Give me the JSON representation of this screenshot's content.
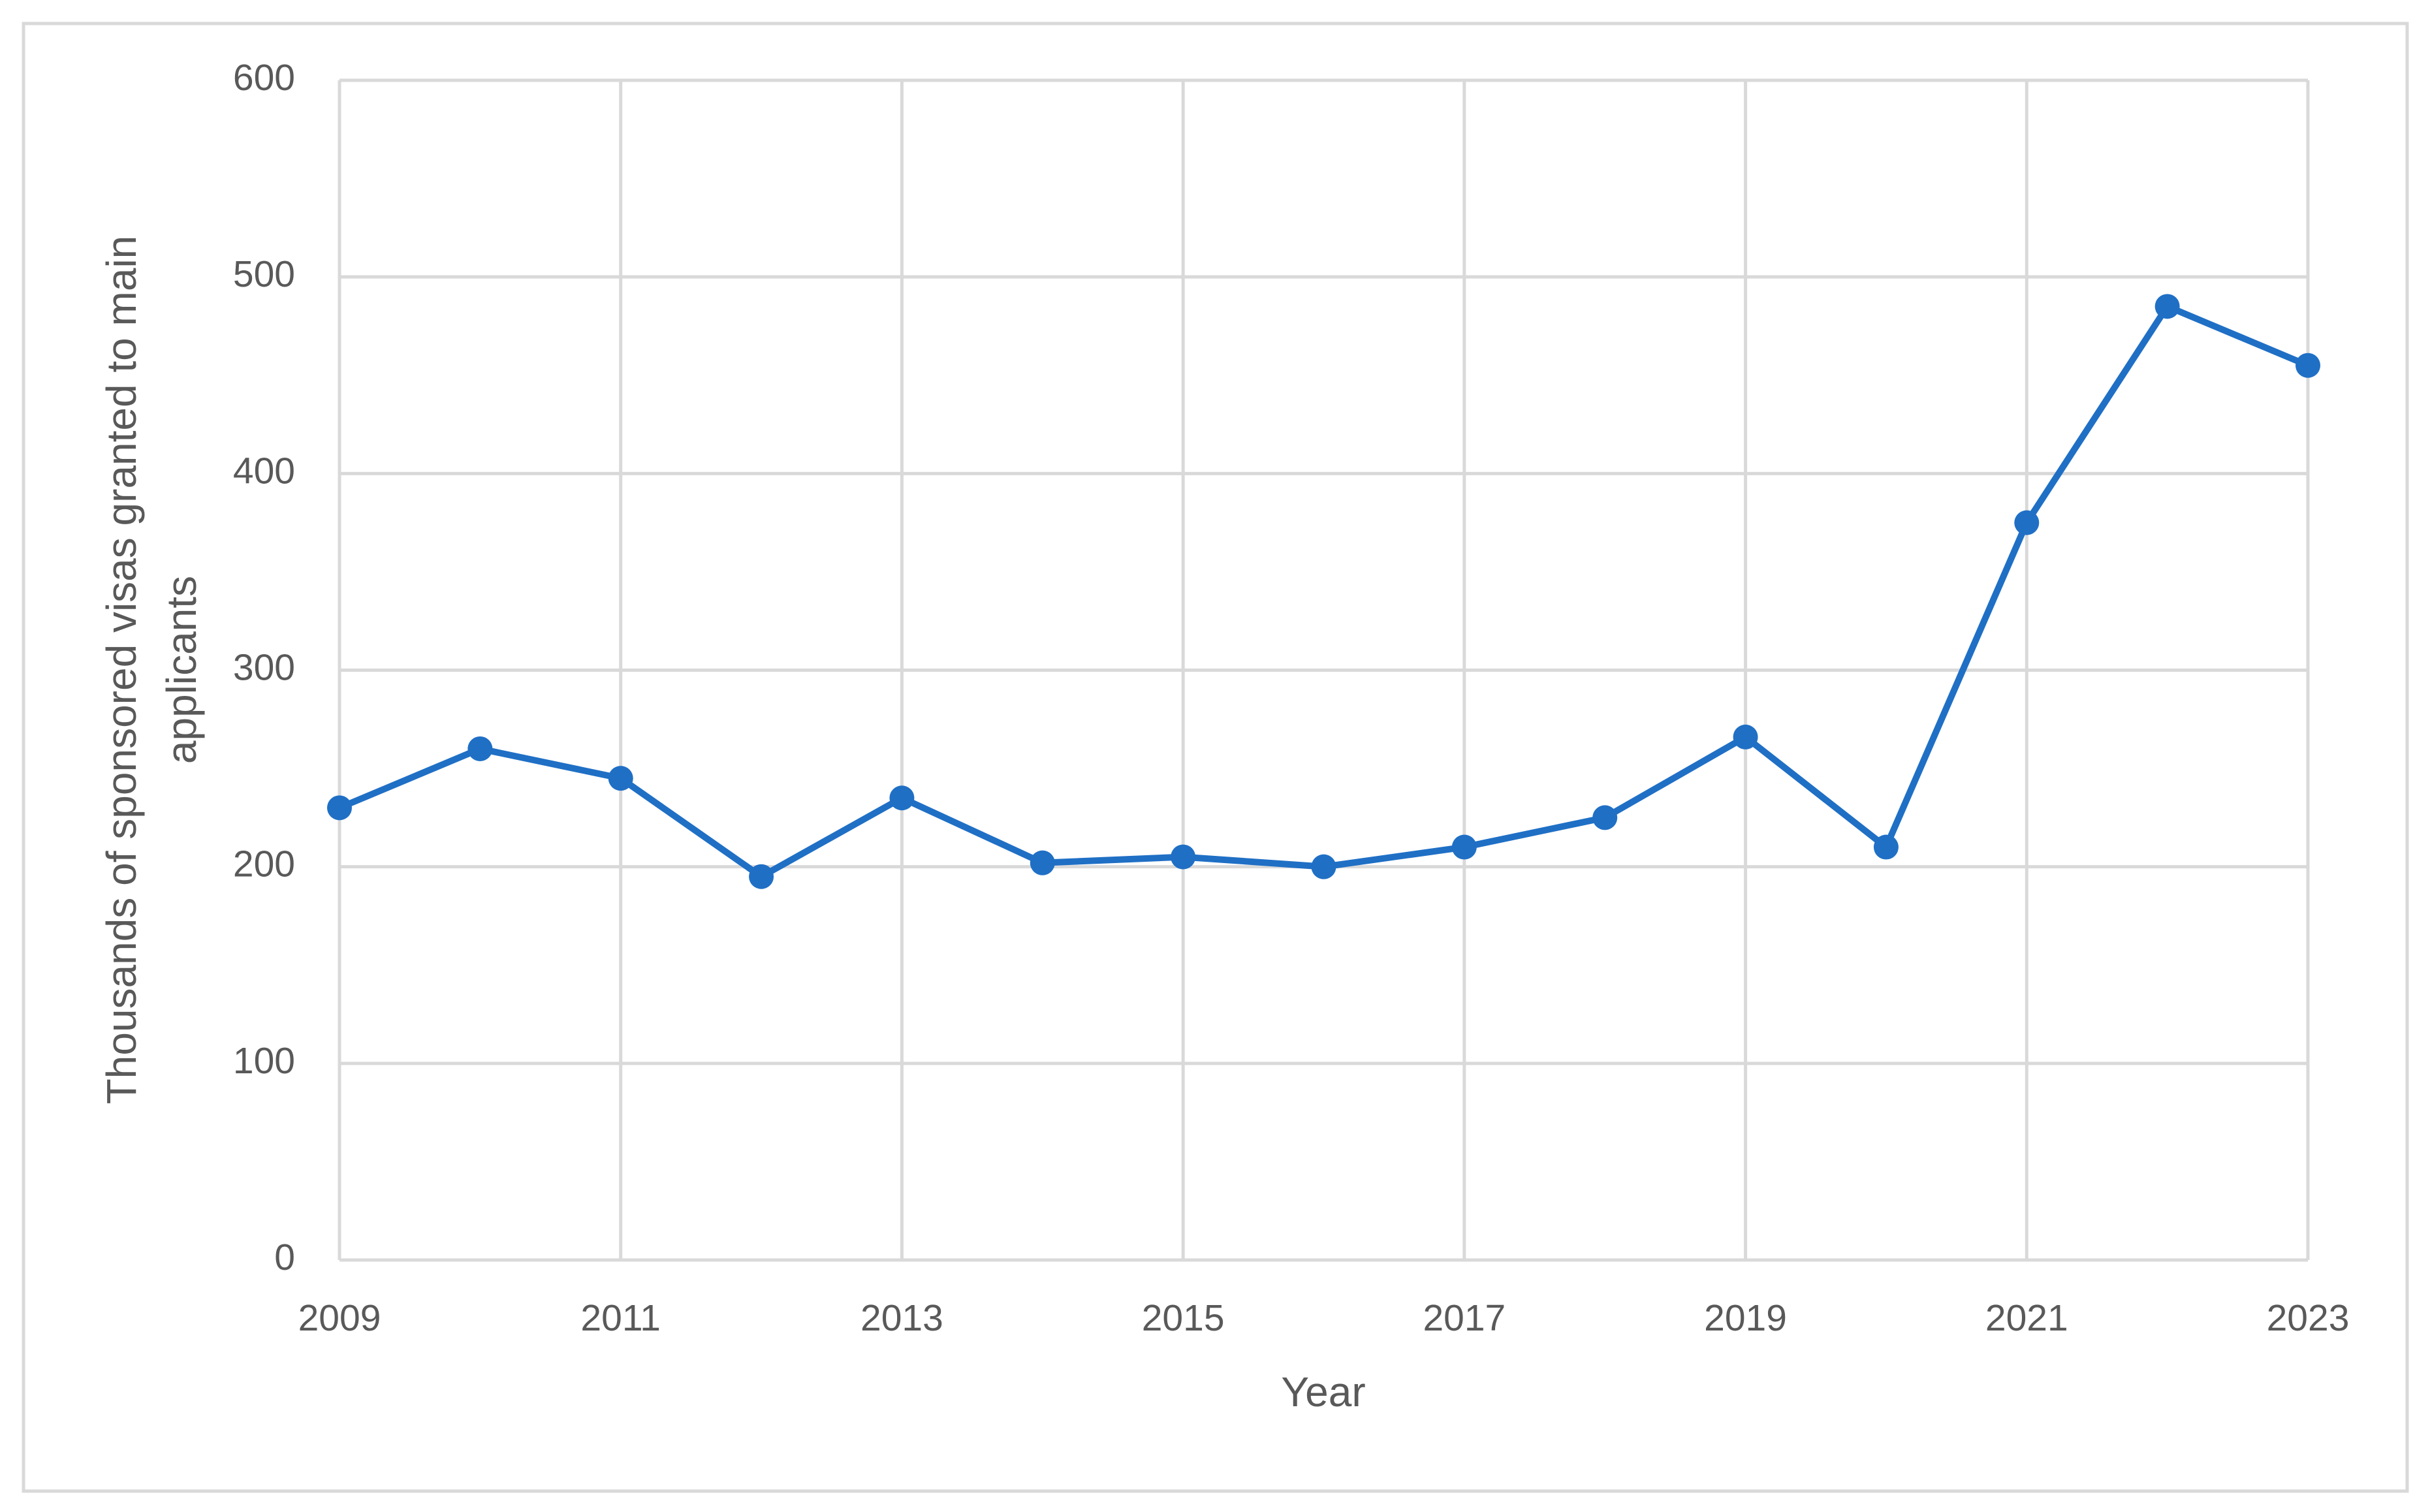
{
  "chart_data": {
    "type": "line",
    "x_label": "Year",
    "y_label": "Thousands of sponsored visas granted to main applicants",
    "x": [
      2009,
      2010,
      2011,
      2012,
      2013,
      2014,
      2015,
      2016,
      2017,
      2018,
      2019,
      2020,
      2021,
      2022,
      2023
    ],
    "values": [
      230,
      260,
      245,
      195,
      235,
      202,
      205,
      200,
      210,
      225,
      266,
      210,
      375,
      485,
      455
    ],
    "color": "#1f6fc5",
    "xlim": [
      2009,
      2023
    ],
    "xticks": [
      2009,
      2011,
      2013,
      2015,
      2017,
      2019,
      2021,
      2023
    ],
    "ylim": [
      0,
      600
    ],
    "yticks": [
      0,
      100,
      200,
      300,
      400,
      500,
      600
    ],
    "grid": true,
    "markers": true
  }
}
